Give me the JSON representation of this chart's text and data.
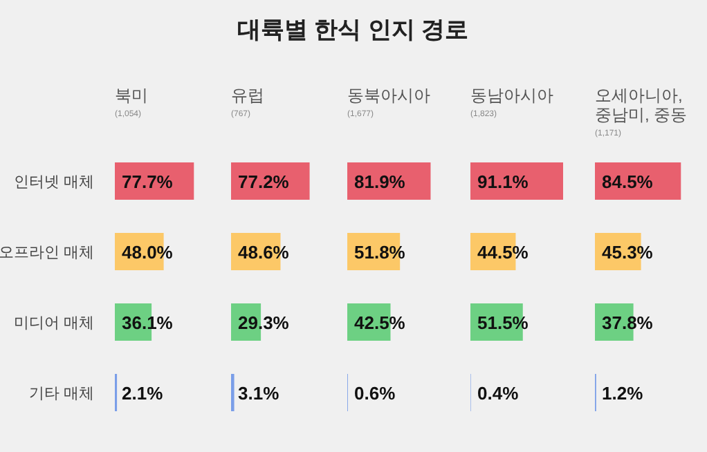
{
  "chart_data": [
    {
      "type": "other",
      "title": "대륙별 한식 인지 경로"
    },
    {
      "type": "bar",
      "orientation": "horizontal",
      "title": "북미",
      "subtitle": "(1,054)",
      "tick_labels": "y",
      "categories": [
        "인터넷 매체",
        "오프라인 매체",
        "미디어 매체",
        "기타 매체"
      ],
      "values": [
        77.7,
        48.0,
        36.1,
        2.1
      ],
      "value_labels": [
        "77.7%",
        "48.0%",
        "36.1%",
        "2.1%"
      ],
      "colors": [
        "#e8606e",
        "#fcc867",
        "#6dd083",
        "#7a9ee8"
      ]
    },
    {
      "type": "bar",
      "orientation": "horizontal",
      "title": "유럽",
      "subtitle": "(767)",
      "categories": [
        null,
        null,
        null,
        null
      ],
      "values": [
        77.2,
        48.6,
        29.3,
        3.1
      ],
      "value_labels": [
        "77.2%",
        "48.6%",
        "29.3%",
        "3.1%"
      ],
      "colors": [
        "#e8606e",
        "#fcc867",
        "#6dd083",
        "#7a9ee8"
      ]
    },
    {
      "type": "bar",
      "orientation": "horizontal",
      "title": "동북아시아",
      "subtitle": "(1,677)",
      "categories": [
        null,
        null,
        null,
        null
      ],
      "values": [
        81.9,
        51.8,
        42.5,
        0.6
      ],
      "value_labels": [
        "81.9%",
        "51.8%",
        "42.5%",
        "0.6%"
      ],
      "colors": [
        "#e8606e",
        "#fcc867",
        "#6dd083",
        "#7a9ee8"
      ]
    },
    {
      "type": "bar",
      "orientation": "horizontal",
      "title": "동남아시아",
      "subtitle": "(1,823)",
      "categories": [
        null,
        null,
        null,
        null
      ],
      "values": [
        91.1,
        44.5,
        51.5,
        0.4
      ],
      "value_labels": [
        "91.1%",
        "44.5%",
        "51.5%",
        "0.4%"
      ],
      "colors": [
        "#e8606e",
        "#fcc867",
        "#6dd083",
        "#7a9ee8"
      ]
    },
    {
      "type": "bar",
      "orientation": "horizontal",
      "title": "오세아니아,\n중남미, 중동",
      "subtitle": "(1,171)",
      "categories": [
        null,
        null,
        null,
        null
      ],
      "values": [
        84.5,
        45.3,
        37.8,
        1.2
      ],
      "value_labels": [
        "84.5%",
        "45.3%",
        "37.8%",
        "1.2%"
      ],
      "colors": [
        "#e8606e",
        "#fcc867",
        "#6dd083",
        "#7a9ee8"
      ]
    }
  ]
}
